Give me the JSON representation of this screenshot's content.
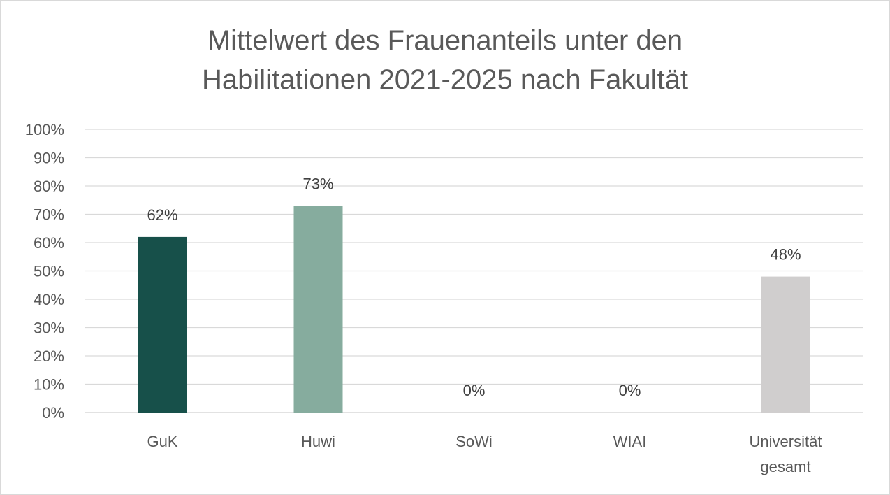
{
  "chart_data": {
    "type": "bar",
    "title_lines": [
      "Mittelwert des Frauenanteils unter den",
      "Habilitationen 2021-2025 nach Fakultät"
    ],
    "categories": [
      [
        "GuK"
      ],
      [
        "Huwi"
      ],
      [
        "SoWi"
      ],
      [
        "WIAI"
      ],
      [
        "Universität",
        "gesamt"
      ]
    ],
    "values": [
      62,
      73,
      0,
      0,
      48
    ],
    "data_labels": [
      "62%",
      "73%",
      "0%",
      "0%",
      "48%"
    ],
    "bar_colors": [
      "#17504a",
      "#86ac9e",
      "#86ac9e",
      "#86ac9e",
      "#d0cece"
    ],
    "ylim": [
      0,
      100
    ],
    "y_ticks": [
      0,
      10,
      20,
      30,
      40,
      50,
      60,
      70,
      80,
      90,
      100
    ],
    "y_tick_labels": [
      "0%",
      "10%",
      "20%",
      "30%",
      "40%",
      "50%",
      "60%",
      "70%",
      "80%",
      "90%",
      "100%"
    ],
    "grid": true,
    "legend": "none",
    "colors": {
      "gridline": "#d9d9d9",
      "axis_line": "#d9d9d9",
      "text": "#595959"
    }
  }
}
